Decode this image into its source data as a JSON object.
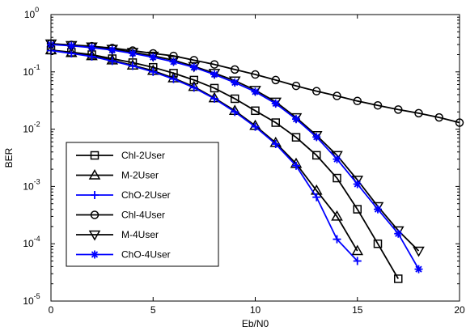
{
  "chart_data": {
    "type": "line",
    "title": "",
    "xlabel": "Eb/N0",
    "ylabel": "BER",
    "xlim": [
      0,
      20
    ],
    "ylim": [
      1e-05,
      1
    ],
    "yscale": "log",
    "xticks": [
      0,
      5,
      10,
      15,
      20
    ],
    "xtick_labels": [
      "0",
      "5",
      "10",
      "15",
      "20"
    ],
    "yticks": [
      1e-05,
      0.0001,
      0.001,
      0.01,
      0.1,
      1
    ],
    "ytick_labels": [
      {
        "base": "10",
        "exp": "-5"
      },
      {
        "base": "10",
        "exp": "-4"
      },
      {
        "base": "10",
        "exp": "-3"
      },
      {
        "base": "10",
        "exp": "-2"
      },
      {
        "base": "10",
        "exp": "-1"
      },
      {
        "base": "10",
        "exp": "0"
      }
    ],
    "grid": false,
    "legend_position": "bottom-left",
    "series": [
      {
        "name": "Chl-2User",
        "color": "#000000",
        "marker": "square",
        "x": [
          0,
          1,
          2,
          3,
          4,
          5,
          6,
          7,
          8,
          9,
          10,
          11,
          12,
          13,
          14,
          15,
          16,
          17
        ],
        "y": [
          0.24,
          0.22,
          0.2,
          0.17,
          0.145,
          0.12,
          0.095,
          0.072,
          0.052,
          0.034,
          0.021,
          0.013,
          0.0072,
          0.0035,
          0.0014,
          0.0004,
          0.0001,
          2.45e-05
        ]
      },
      {
        "name": "M-2User",
        "color": "#000000",
        "marker": "triangle",
        "x": [
          0,
          1,
          2,
          3,
          4,
          5,
          6,
          7,
          8,
          9,
          10,
          11,
          12,
          13,
          14,
          15
        ],
        "y": [
          0.24,
          0.215,
          0.19,
          0.16,
          0.13,
          0.105,
          0.078,
          0.055,
          0.035,
          0.021,
          0.0115,
          0.0058,
          0.0025,
          0.00085,
          0.0003,
          7.5e-05
        ]
      },
      {
        "name": "ChO-2User",
        "color": "#0000ff",
        "marker": "plus",
        "x": [
          0,
          1,
          2,
          3,
          4,
          5,
          6,
          7,
          8,
          9,
          10,
          11,
          12,
          13,
          14,
          15
        ],
        "y": [
          0.235,
          0.21,
          0.185,
          0.155,
          0.127,
          0.1,
          0.075,
          0.053,
          0.034,
          0.02,
          0.011,
          0.0055,
          0.0023,
          0.00065,
          0.00012,
          5e-05
        ]
      },
      {
        "name": "Chl-4User",
        "color": "#000000",
        "marker": "circle",
        "x": [
          0,
          1,
          2,
          3,
          4,
          5,
          6,
          7,
          8,
          9,
          10,
          11,
          12,
          13,
          14,
          15,
          16,
          17,
          18,
          19,
          20
        ],
        "y": [
          0.31,
          0.295,
          0.28,
          0.26,
          0.235,
          0.21,
          0.19,
          0.16,
          0.135,
          0.11,
          0.09,
          0.072,
          0.057,
          0.046,
          0.038,
          0.031,
          0.026,
          0.022,
          0.019,
          0.016,
          0.013
        ]
      },
      {
        "name": "M-4User",
        "color": "#000000",
        "marker": "triangle-down",
        "x": [
          0,
          1,
          2,
          3,
          4,
          5,
          6,
          7,
          8,
          9,
          10,
          11,
          12,
          13,
          14,
          15,
          16,
          17,
          18
        ],
        "y": [
          0.31,
          0.29,
          0.275,
          0.25,
          0.22,
          0.19,
          0.16,
          0.125,
          0.095,
          0.07,
          0.048,
          0.03,
          0.016,
          0.0078,
          0.0035,
          0.0013,
          0.00045,
          0.00017,
          7.5e-05
        ]
      },
      {
        "name": "ChO-4User",
        "color": "#0000ff",
        "marker": "star",
        "x": [
          0,
          1,
          2,
          3,
          4,
          5,
          6,
          7,
          8,
          9,
          10,
          11,
          12,
          13,
          14,
          15,
          16,
          17,
          18
        ],
        "y": [
          0.3,
          0.285,
          0.265,
          0.24,
          0.21,
          0.18,
          0.15,
          0.12,
          0.09,
          0.065,
          0.045,
          0.028,
          0.015,
          0.0073,
          0.003,
          0.0011,
          0.0004,
          0.00015,
          3.6e-05
        ]
      }
    ]
  }
}
